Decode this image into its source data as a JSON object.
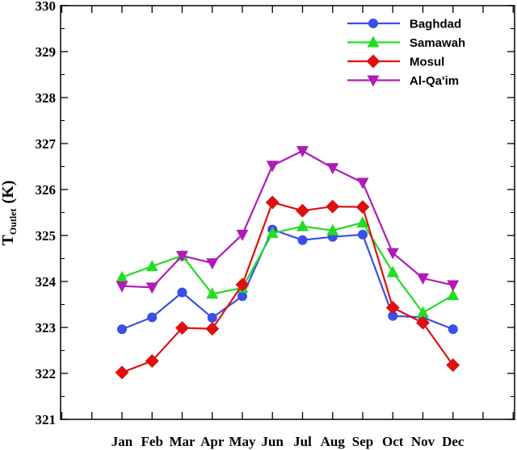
{
  "chart_data": {
    "type": "line",
    "title": "",
    "xlabel": "",
    "ylabel": {
      "main": "T",
      "subscript": "Outlet",
      "unit": "(K)"
    },
    "categories": [
      "Jan",
      "Feb",
      "Mar",
      "Apr",
      "May",
      "Jun",
      "Jul",
      "Aug",
      "Sep",
      "Oct",
      "Nov",
      "Dec"
    ],
    "ylim": [
      321,
      330
    ],
    "yticks": [
      321,
      322,
      323,
      324,
      325,
      326,
      327,
      328,
      329,
      330
    ],
    "ytick_labels": [
      "321",
      "322",
      "323",
      "324",
      "325",
      "326",
      "327",
      "328",
      "329",
      "330"
    ],
    "grid": false,
    "legend_position": "top-right",
    "series": [
      {
        "name": "Baghdad",
        "color": "#3a4ee8",
        "marker": "circle",
        "values": [
          322.96,
          323.22,
          323.76,
          323.21,
          323.68,
          325.13,
          324.9,
          324.97,
          325.02,
          323.25,
          323.22,
          322.96
        ]
      },
      {
        "name": "Samawah",
        "color": "#22dd22",
        "marker": "triangle-up",
        "values": [
          324.09,
          324.33,
          324.56,
          323.73,
          323.86,
          325.05,
          325.2,
          325.11,
          325.28,
          324.2,
          323.32,
          323.7
        ]
      },
      {
        "name": "Mosul",
        "color": "#dd1111",
        "marker": "diamond",
        "values": [
          322.02,
          322.27,
          322.99,
          322.97,
          323.93,
          325.72,
          325.54,
          325.63,
          325.62,
          323.43,
          323.1,
          322.18
        ]
      },
      {
        "name": "Al-Qa'im",
        "color": "#b01bb8",
        "marker": "triangle-down",
        "values": [
          323.9,
          323.87,
          324.56,
          324.4,
          325.02,
          326.52,
          326.84,
          326.47,
          326.15,
          324.62,
          324.07,
          323.92
        ]
      }
    ]
  }
}
